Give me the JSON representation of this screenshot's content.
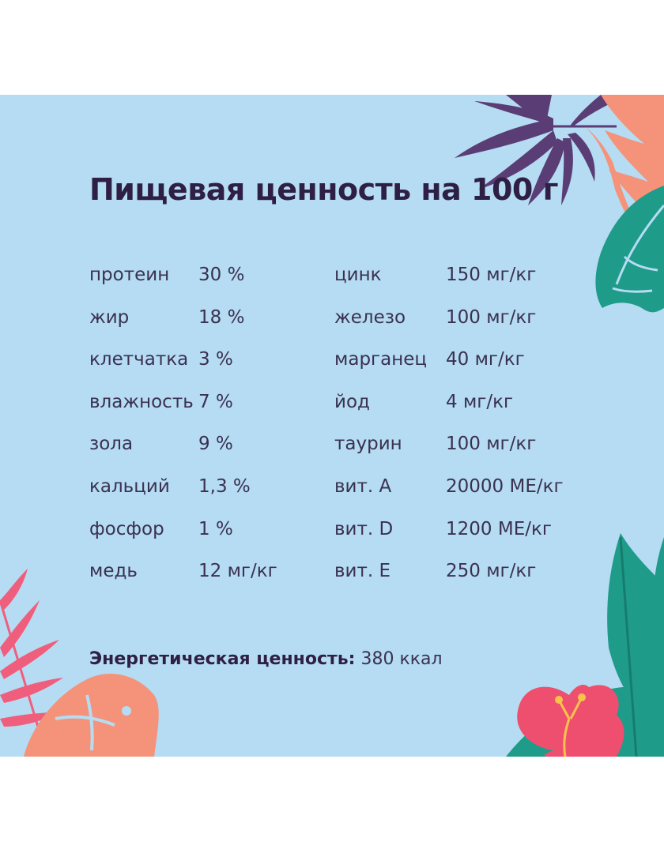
{
  "title": "Пищевая ценность на 100 г",
  "left_column": [
    {
      "name": "протеин",
      "value": "30 %"
    },
    {
      "name": "жир",
      "value": "18 %"
    },
    {
      "name": "клетчатка",
      "value": "3 %"
    },
    {
      "name": "влажность",
      "value": "7 %"
    },
    {
      "name": "зола",
      "value": "9 %"
    },
    {
      "name": "кальций",
      "value": "1,3 %"
    },
    {
      "name": "фосфор",
      "value": "1 %"
    },
    {
      "name": "медь",
      "value": "12 мг/кг"
    }
  ],
  "right_column": [
    {
      "name": "цинк",
      "value": "150 мг/кг"
    },
    {
      "name": "железо",
      "value": "100 мг/кг"
    },
    {
      "name": "марганец",
      "value": "40 мг/кг"
    },
    {
      "name": "йод",
      "value": "4 мг/кг"
    },
    {
      "name": "таурин",
      "value": "100 мг/кг"
    },
    {
      "name": "вит. A",
      "value": "20000 МЕ/кг"
    },
    {
      "name": "вит. D",
      "value": "1200 МЕ/кг"
    },
    {
      "name": "вит. E",
      "value": "250 мг/кг"
    }
  ],
  "energy": {
    "label": "Энергетическая ценность:",
    "value": " 380 ккал"
  },
  "colors": {
    "background": "#b5dcf3",
    "text": "#3a3150",
    "title": "#2e1f44",
    "leaf_purple": "#5a3d75",
    "leaf_peach": "#f4937a",
    "leaf_teal": "#1f9b8a",
    "leaf_pink": "#ef5f7d",
    "flower_pink": "#ef4f6e"
  }
}
